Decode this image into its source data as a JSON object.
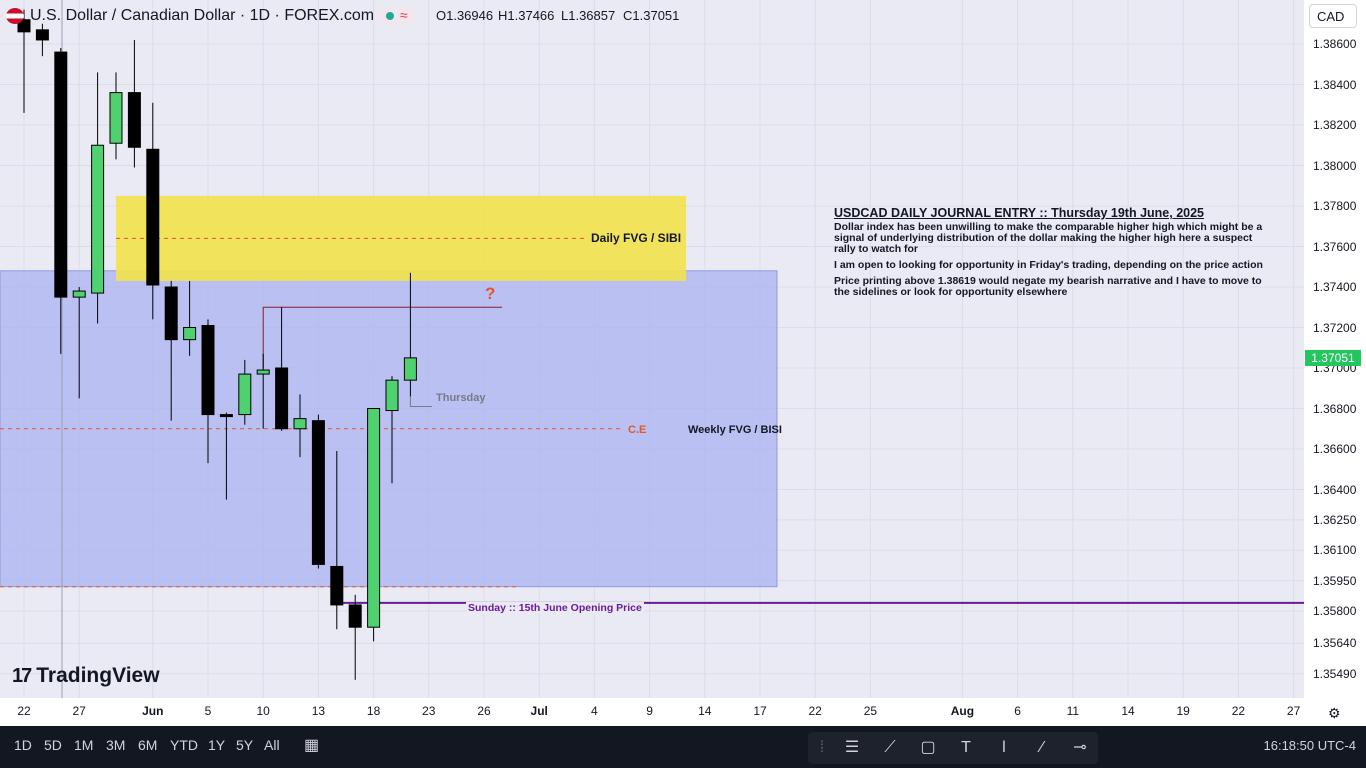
{
  "header": {
    "title": "U.S. Dollar / Canadian Dollar · 1D · FOREX.com",
    "open": "O1.36946",
    "high": "H1.37466",
    "low": "L1.36857",
    "close": "C1.37051",
    "currency": "CAD"
  },
  "chart_data": {
    "type": "candlestick",
    "price_scale": [
      "1.38600",
      "1.38400",
      "1.38200",
      "1.38000",
      "1.37800",
      "1.37600",
      "1.37400",
      "1.37200",
      "1.37000",
      "1.36800",
      "1.36600",
      "1.36400",
      "1.36250",
      "1.36100",
      "1.35950",
      "1.35800",
      "1.35640",
      "1.35490"
    ],
    "last_price": "1.37051",
    "x_ticks": [
      {
        "label": "22",
        "slot": 0
      },
      {
        "label": "27",
        "slot": 3
      },
      {
        "label": "Jun",
        "slot": 7,
        "bold": true
      },
      {
        "label": "5",
        "slot": 10
      },
      {
        "label": "10",
        "slot": 13
      },
      {
        "label": "13",
        "slot": 16
      },
      {
        "label": "18",
        "slot": 19
      },
      {
        "label": "23",
        "slot": 22
      },
      {
        "label": "26",
        "slot": 25
      },
      {
        "label": "Jul",
        "slot": 28,
        "bold": true
      },
      {
        "label": "4",
        "slot": 31
      },
      {
        "label": "9",
        "slot": 34
      },
      {
        "label": "14",
        "slot": 37
      },
      {
        "label": "17",
        "slot": 40
      },
      {
        "label": "22",
        "slot": 43
      },
      {
        "label": "25",
        "slot": 46
      },
      {
        "label": "Aug",
        "slot": 51,
        "bold": true
      },
      {
        "label": "6",
        "slot": 54
      },
      {
        "label": "11",
        "slot": 57
      },
      {
        "label": "14",
        "slot": 60
      },
      {
        "label": "19",
        "slot": 63
      },
      {
        "label": "22",
        "slot": 66
      },
      {
        "label": "27",
        "slot": 69
      }
    ],
    "candles": [
      {
        "o": 1.3872,
        "h": 1.3877,
        "l": 1.3826,
        "c": 1.3866
      },
      {
        "o": 1.3867,
        "h": 1.387,
        "l": 1.3854,
        "c": 1.3862
      },
      {
        "o": 1.3856,
        "h": 1.3858,
        "l": 1.3707,
        "c": 1.3735
      },
      {
        "o": 1.3735,
        "h": 1.374,
        "l": 1.3685,
        "c": 1.3738
      },
      {
        "o": 1.3737,
        "h": 1.3846,
        "l": 1.3722,
        "c": 1.381
      },
      {
        "o": 1.3811,
        "h": 1.3846,
        "l": 1.3803,
        "c": 1.3836
      },
      {
        "o": 1.3836,
        "h": 1.3862,
        "l": 1.3799,
        "c": 1.3809
      },
      {
        "o": 1.3808,
        "h": 1.3831,
        "l": 1.3724,
        "c": 1.3741
      },
      {
        "o": 1.374,
        "h": 1.3743,
        "l": 1.3674,
        "c": 1.3714
      },
      {
        "o": 1.3714,
        "h": 1.3743,
        "l": 1.3706,
        "c": 1.372
      },
      {
        "o": 1.3721,
        "h": 1.3724,
        "l": 1.3653,
        "c": 1.3677
      },
      {
        "o": 1.3677,
        "h": 1.3678,
        "l": 1.3635,
        "c": 1.3676
      },
      {
        "o": 1.3677,
        "h": 1.3704,
        "l": 1.3672,
        "c": 1.3697
      },
      {
        "o": 1.3697,
        "h": 1.3707,
        "l": 1.367,
        "c": 1.3699
      },
      {
        "o": 1.37,
        "h": 1.373,
        "l": 1.3669,
        "c": 1.367
      },
      {
        "o": 1.367,
        "h": 1.3687,
        "l": 1.3656,
        "c": 1.3675
      },
      {
        "o": 1.3674,
        "h": 1.3677,
        "l": 1.3601,
        "c": 1.3603
      },
      {
        "o": 1.3602,
        "h": 1.3659,
        "l": 1.3571,
        "c": 1.3583
      },
      {
        "o": 1.3583,
        "h": 1.3588,
        "l": 1.3546,
        "c": 1.3572
      },
      {
        "o": 1.3572,
        "h": 1.368,
        "l": 1.3565,
        "c": 1.368
      },
      {
        "o": 1.3679,
        "h": 1.3696,
        "l": 1.3643,
        "c": 1.3694
      },
      {
        "o": 1.3694,
        "h": 1.3747,
        "l": 1.3686,
        "c": 1.3705
      }
    ],
    "zones": [
      {
        "name": "Daily FVG / SIBI",
        "from": 1.3743,
        "to": 1.3785,
        "color": "#f2e24a"
      },
      {
        "name": "Weekly FVG / BISI",
        "from": 1.3592,
        "to": 1.3748,
        "color": "#a9b1f2"
      }
    ],
    "lines": [
      {
        "name": "C.E",
        "price": 1.367,
        "color": "#e0582b"
      },
      {
        "name": "Sunday :: 15th June Opening Price",
        "price": 1.3584,
        "color": "#6a1b9a"
      }
    ],
    "annotations": {
      "question": "?",
      "thursday": "Thursday"
    },
    "colors": {
      "bull": "#4fd16f",
      "bear": "#000000",
      "background": "#e9eaf3"
    }
  },
  "journal": {
    "title": "USDCAD DAILY JOURNAL ENTRY :: Thursday 19th June, 2025",
    "paragraphs": [
      "Dollar index has been unwilling to make the comparable higher high which might be a signal of underlying distribution of the dollar making the higher high here a suspect rally to watch for",
      "I am open to looking for opportunity in Friday's trading, depending on the price action",
      "Price printing above 1.38619 would negate my bearish narrative and I have to move to the sidelines or look for opportunity elsewhere"
    ]
  },
  "branding": {
    "logo": "TradingView"
  },
  "bottombar": {
    "ranges": [
      "1D",
      "5D",
      "1M",
      "3M",
      "6M",
      "YTD",
      "1Y",
      "5Y",
      "All"
    ],
    "clock": "16:18:50 UTC-4"
  },
  "icons": [
    "flag-icon",
    "status-dot-icon",
    "wave-icon",
    "calendar-icon",
    "gear-icon",
    "tradingview-logo-icon"
  ]
}
